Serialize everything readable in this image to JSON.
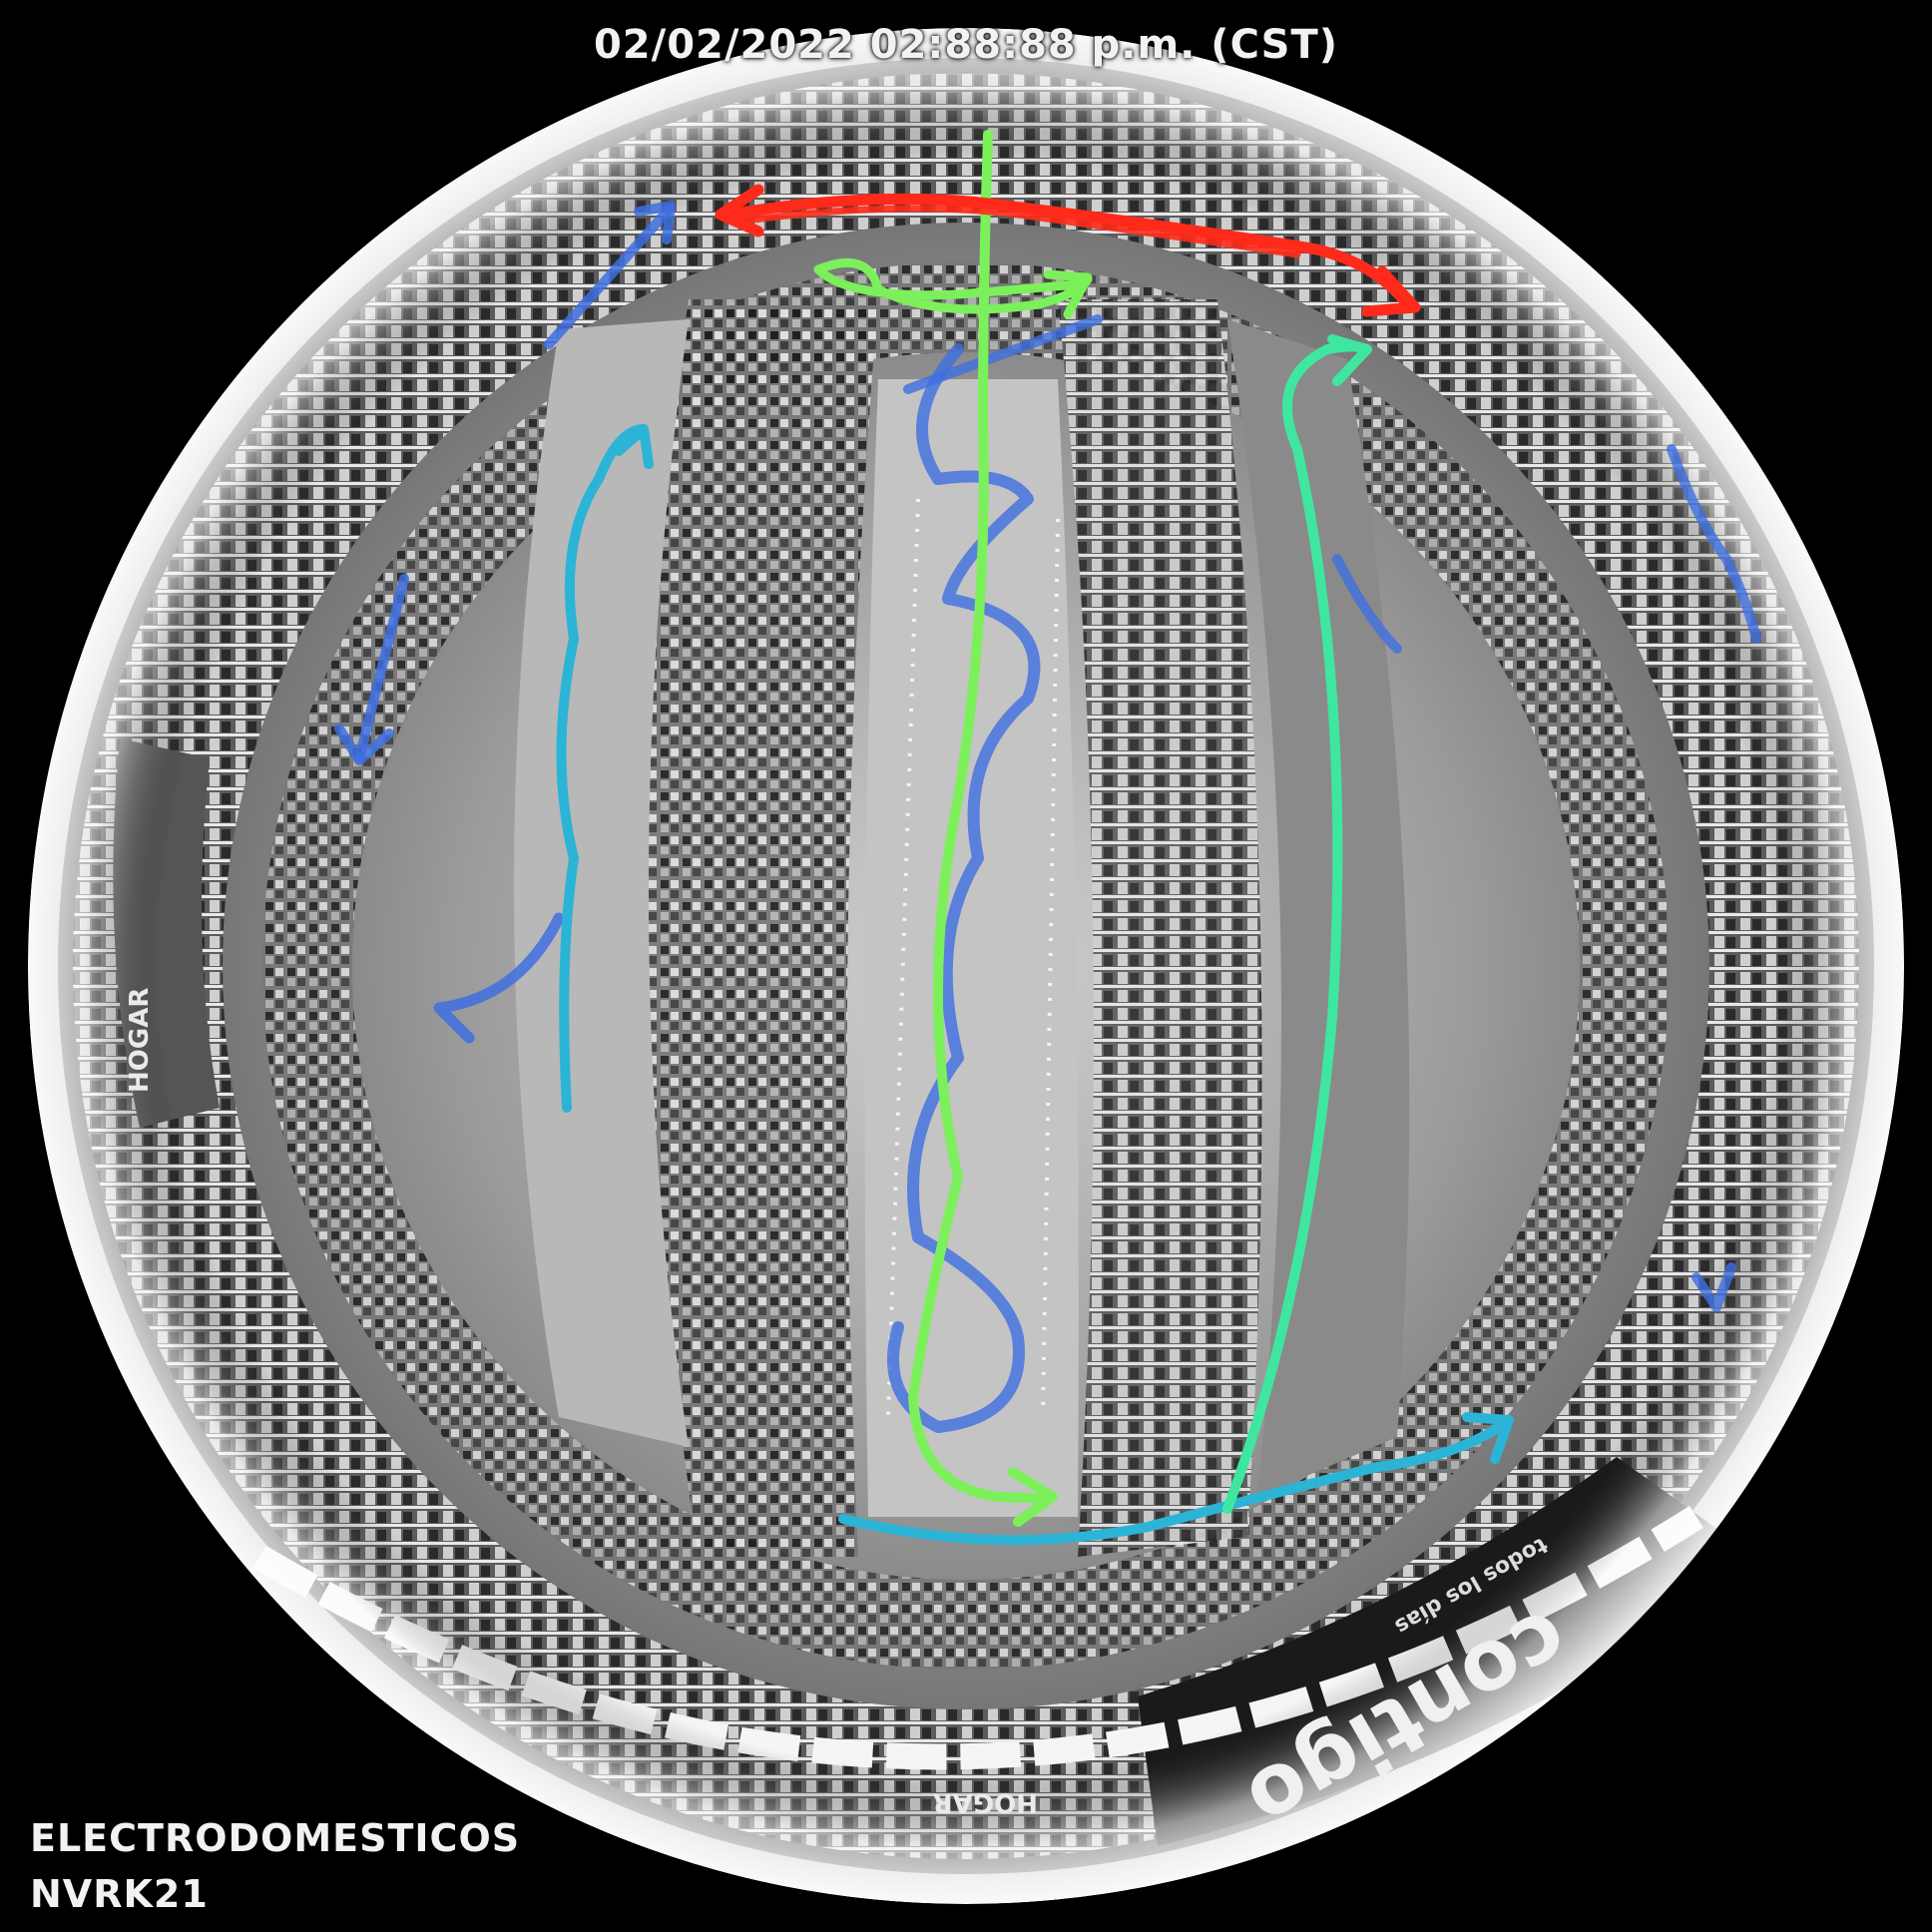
{
  "overlay": {
    "timestamp": "02/02/2022 02:88:88 p.m. (CST)",
    "camera_name": "ELECTRODOMESTICOS",
    "camera_id": "NVRK21"
  },
  "store_signage": {
    "left_wall": "HOGAR",
    "bottom_wall": "HOGAR",
    "brand": "contigo",
    "brand_tagline": "todos los días"
  },
  "path_colors": {
    "red": "#ff2a1a",
    "light_green": "#7cf05a",
    "teal_green": "#3fe6a0",
    "cyan": "#2bb4d6",
    "blue": "#3e6fe0"
  }
}
